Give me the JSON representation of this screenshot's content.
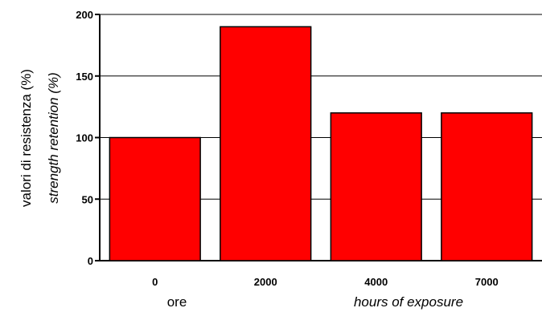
{
  "chart_data": {
    "type": "bar",
    "categories": [
      "0",
      "2000",
      "4000",
      "7000"
    ],
    "values": [
      100,
      190,
      120,
      120
    ],
    "ylim": [
      0,
      200
    ],
    "yticks": [
      "0",
      "50",
      "100",
      "150",
      "200"
    ],
    "ylabel": "valori di resistenza (%)",
    "ylabel_en": "strength retention (%)",
    "xlabel": "ore",
    "xlabel_en": "hours of exposure",
    "grid": true,
    "bar_color": "#ff0000",
    "bar_edge_color": "#000000"
  }
}
